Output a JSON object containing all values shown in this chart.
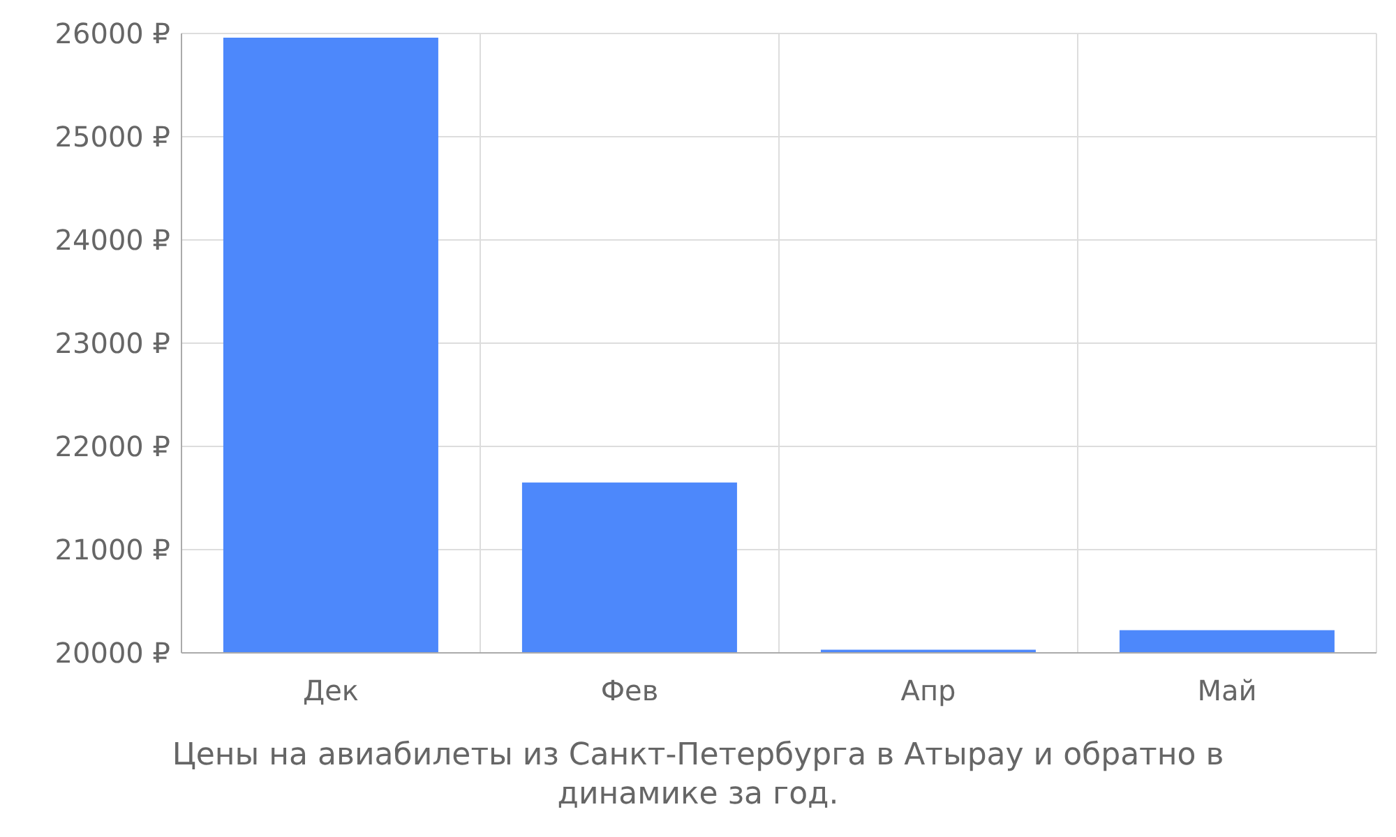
{
  "chart_data": {
    "type": "bar",
    "title": "Цены на авиабилеты из Санкт-Петербурга в Атырау и обратно в динамике за год.",
    "categories": [
      "Дек",
      "Фев",
      "Апр",
      "Май"
    ],
    "values": [
      25960,
      21650,
      20030,
      20220
    ],
    "color": "#4d88fb",
    "ylim": [
      20000,
      26000
    ],
    "yticks": [
      {
        "value": 20000,
        "label": "20000 ₽"
      },
      {
        "value": 21000,
        "label": "21000 ₽"
      },
      {
        "value": 22000,
        "label": "22000 ₽"
      },
      {
        "value": 23000,
        "label": "23000 ₽"
      },
      {
        "value": 24000,
        "label": "24000 ₽"
      },
      {
        "value": 25000,
        "label": "25000 ₽"
      },
      {
        "value": 26000,
        "label": "26000 ₽"
      }
    ],
    "grid": true
  }
}
